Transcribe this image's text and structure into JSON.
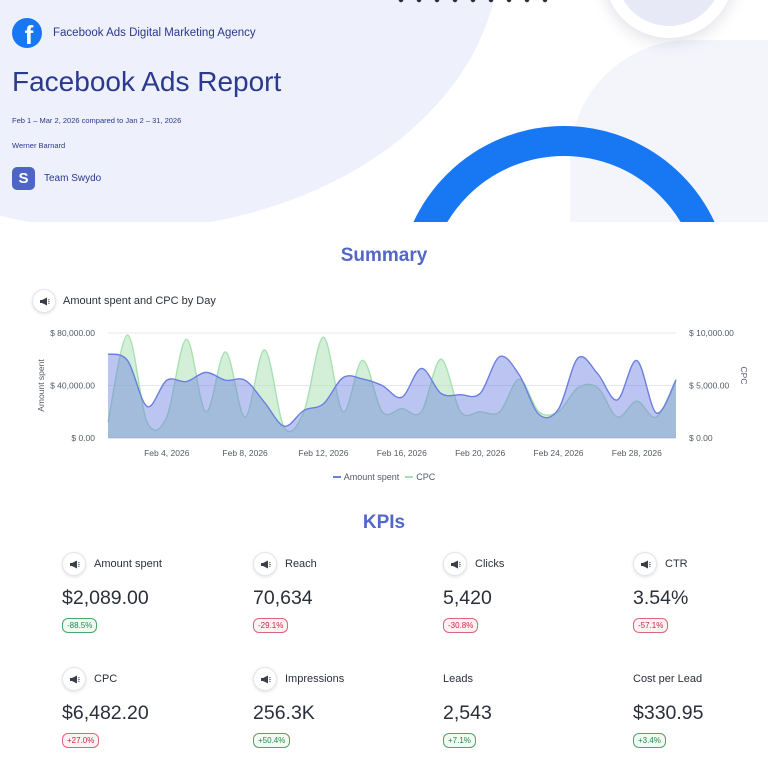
{
  "header": {
    "agency_name": "Facebook Ads Digital Marketing Agency",
    "agency_logo_letter": "f",
    "report_title": "Facebook Ads Report",
    "date_range": "Feb 1 – Mar 2, 2026 compared to Jan 2 – 31, 2026",
    "author": "Werner Barnard",
    "team_logo_letter": "S",
    "team_name": "Team Swydo",
    "brand_color": "#1877f2"
  },
  "summary": {
    "section_title": "Summary",
    "chart_title": "Amount spent and CPC by Day",
    "icon": "megaphone-icon"
  },
  "chart_data": {
    "type": "area",
    "title": "Amount spent and CPC by Day",
    "x": [
      1,
      2,
      3,
      4,
      5,
      6,
      7,
      8,
      9,
      10,
      11,
      12,
      13,
      14,
      15,
      16,
      17,
      18,
      19,
      20,
      21,
      22,
      23,
      24,
      25,
      26,
      27,
      28,
      29,
      30
    ],
    "x_tick_labels": [
      "Feb 4, 2026",
      "Feb 8, 2026",
      "Feb 12, 2026",
      "Feb 16, 2026",
      "Feb 20, 2026",
      "Feb 24, 2026",
      "Feb 28, 2026"
    ],
    "x_tick_positions": [
      4,
      8,
      12,
      16,
      20,
      24,
      28
    ],
    "ylabel_left": "Amount spent",
    "ylabel_right": "CPC",
    "yticks_left": [
      "$ 0.00",
      "$ 40,000.00",
      "$ 80,000.00"
    ],
    "yticks_right": [
      "$ 0.00",
      "$ 5,000.00",
      "$ 10,000.00"
    ],
    "ylim_left": [
      0,
      80000
    ],
    "ylim_right": [
      0,
      10000
    ],
    "legend_position": "bottom",
    "series": [
      {
        "name": "Amount spent",
        "axis": "left",
        "color": "#6b7fe0",
        "values": [
          64000,
          59000,
          24000,
          44000,
          43000,
          50000,
          44000,
          44000,
          27000,
          9000,
          21000,
          26000,
          46000,
          45000,
          40000,
          31000,
          53000,
          34000,
          33000,
          34000,
          62000,
          48000,
          18000,
          22000,
          61000,
          49000,
          29000,
          59000,
          19000,
          44000
        ]
      },
      {
        "name": "CPC",
        "axis": "right",
        "color": "#a8e0b2",
        "values": [
          1500,
          9800,
          1500,
          2000,
          9400,
          2500,
          8200,
          2000,
          8400,
          1000,
          2500,
          9600,
          2500,
          7400,
          2500,
          2800,
          2500,
          7500,
          2500,
          2500,
          2500,
          5600,
          2500,
          2500,
          4800,
          4800,
          2000,
          3500,
          2000,
          5600
        ]
      }
    ]
  },
  "kpis": {
    "section_title": "KPIs",
    "items": [
      {
        "label": "Amount spent",
        "value": "$2,089.00",
        "change": "-88.5%",
        "status": "good",
        "has_icon": true
      },
      {
        "label": "Reach",
        "value": "70,634",
        "change": "-29.1%",
        "status": "bad",
        "has_icon": true
      },
      {
        "label": "Clicks",
        "value": "5,420",
        "change": "-30.8%",
        "status": "bad",
        "has_icon": true
      },
      {
        "label": "CTR",
        "value": "3.54%",
        "change": "-57.1%",
        "status": "bad",
        "has_icon": true
      },
      {
        "label": "CPC",
        "value": "$6,482.20",
        "change": "+27.0%",
        "status": "bad",
        "has_icon": true
      },
      {
        "label": "Impressions",
        "value": "256.3K",
        "change": "+50.4%",
        "status": "good",
        "has_icon": true
      },
      {
        "label": "Leads",
        "value": "2,543",
        "change": "+7.1%",
        "status": "good",
        "has_icon": false
      },
      {
        "label": "Cost per Lead",
        "value": "$330.95",
        "change": "+3.4%",
        "status": "good",
        "has_icon": false
      }
    ]
  },
  "colors": {
    "good": "#1f8a43",
    "bad": "#d0223f",
    "accent": "#5367c9"
  }
}
